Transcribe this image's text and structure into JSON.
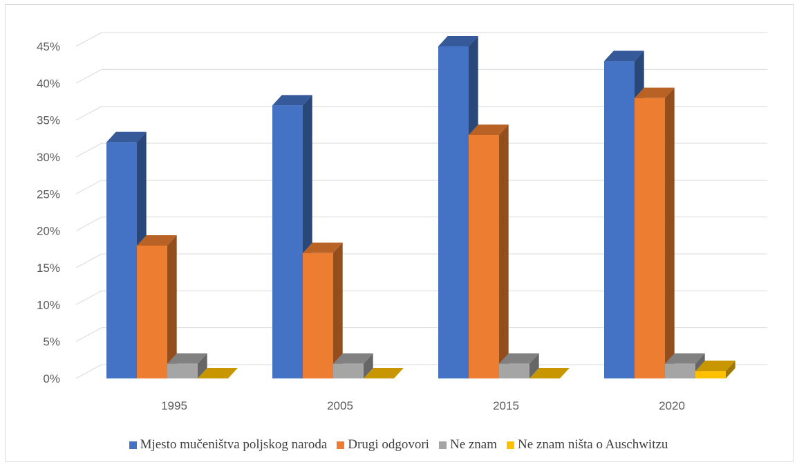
{
  "chart_data": {
    "type": "bar",
    "categories": [
      "1995",
      "2005",
      "2015",
      "2020"
    ],
    "series": [
      {
        "name": "Mjesto mučeništva poljskog naroda",
        "values": [
          32,
          37,
          45,
          43
        ],
        "color": "#4472C4"
      },
      {
        "name": "Drugi odgovori",
        "values": [
          18,
          17,
          33,
          38
        ],
        "color": "#ED7D31"
      },
      {
        "name": "Ne znam",
        "values": [
          2,
          2,
          2,
          2
        ],
        "color": "#A5A5A5"
      },
      {
        "name": "Ne znam ništa o Auschwitzu",
        "values": [
          0,
          0,
          0,
          1
        ],
        "color": "#FFC000"
      }
    ],
    "yticks": [
      "0%",
      "5%",
      "10%",
      "15%",
      "20%",
      "25%",
      "30%",
      "35%",
      "40%",
      "45%"
    ],
    "ylim": [
      0,
      45
    ],
    "grid": true,
    "legend_position": "bottom",
    "title": "",
    "xlabel": "",
    "ylabel": ""
  }
}
